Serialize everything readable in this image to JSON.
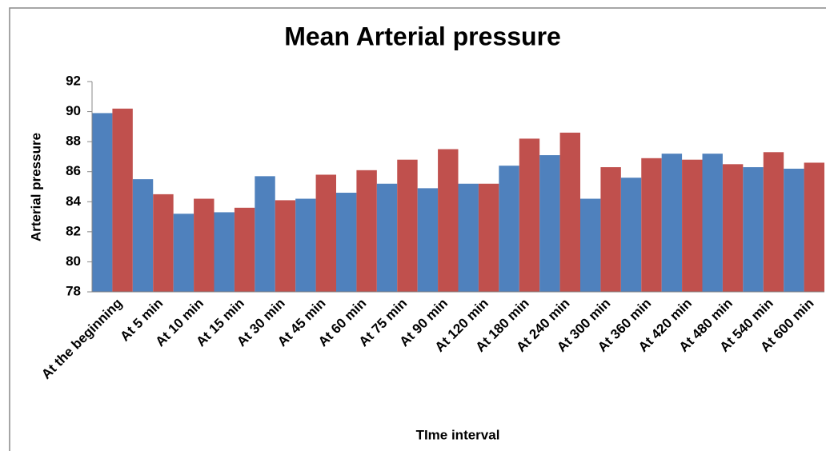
{
  "chart_data": {
    "type": "bar",
    "title": "Mean Arterial pressure",
    "x_label": "TIme interval",
    "y_label": "Arterial pressure",
    "categories": [
      "At the beginning",
      "At 5 min",
      "At 10 min",
      "At 15 min",
      "At 30 min",
      "At 45 min",
      "At 60 min",
      "At 75 min",
      "At 90 min",
      "At 120 min",
      "At 180 min",
      "At 240 min",
      "At 300 min",
      "At 360 min",
      "At 420 min",
      "At 480 min",
      "At 540 min",
      "At 600 min"
    ],
    "series": [
      {
        "color": "#4f81bd",
        "values": [
          89.9,
          85.5,
          83.2,
          83.3,
          85.7,
          84.2,
          84.6,
          85.2,
          84.9,
          85.2,
          86.4,
          87.1,
          84.2,
          85.6,
          87.2,
          87.2,
          86.3,
          86.2
        ]
      },
      {
        "color": "#c0504d",
        "values": [
          90.2,
          84.5,
          84.2,
          83.6,
          84.1,
          85.8,
          86.1,
          86.8,
          87.5,
          85.2,
          88.2,
          88.6,
          86.3,
          86.9,
          86.8,
          86.5,
          87.3,
          86.6
        ]
      }
    ],
    "ylim": [
      78,
      92
    ],
    "yticks": [
      78,
      80,
      82,
      84,
      86,
      88,
      90,
      92
    ],
    "grid": false
  }
}
